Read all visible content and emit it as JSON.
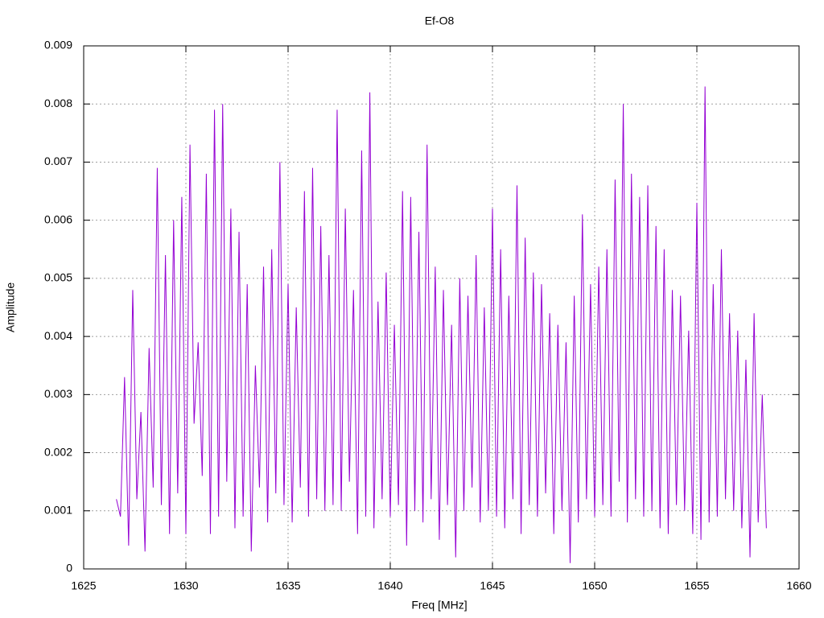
{
  "chart_data": {
    "type": "line",
    "title": "Ef-O8",
    "x_label": "Freq [MHz]",
    "y_label": "Amplitude",
    "color": "#9400d3",
    "grid": true,
    "xlim": [
      1625,
      1660
    ],
    "xticks": [
      1625,
      1630,
      1635,
      1640,
      1645,
      1650,
      1655,
      1660
    ],
    "ylim": [
      0,
      0.009
    ],
    "yticks": [
      0,
      0.001,
      0.002,
      0.003,
      0.004,
      0.005,
      0.006,
      0.007,
      0.008,
      0.009
    ],
    "x": [
      1626.6,
      1626.8,
      1627,
      1627.2,
      1627.4,
      1627.6,
      1627.8,
      1628,
      1628.2,
      1628.4,
      1628.6,
      1628.8,
      1629,
      1629.2,
      1629.4,
      1629.6,
      1629.8,
      1630,
      1630.2,
      1630.4,
      1630.6,
      1630.8,
      1631,
      1631.2,
      1631.4,
      1631.6,
      1631.8,
      1632,
      1632.2,
      1632.4,
      1632.6,
      1632.8,
      1633,
      1633.2,
      1633.4,
      1633.6,
      1633.8,
      1634,
      1634.2,
      1634.4,
      1634.6,
      1634.8,
      1635,
      1635.2,
      1635.4,
      1635.6,
      1635.8,
      1636,
      1636.2,
      1636.4,
      1636.6,
      1636.8,
      1637,
      1637.2,
      1637.4,
      1637.6,
      1637.8,
      1638,
      1638.2,
      1638.4,
      1638.6,
      1638.8,
      1639,
      1639.2,
      1639.4,
      1639.6,
      1639.8,
      1640,
      1640.2,
      1640.4,
      1640.6,
      1640.8,
      1641,
      1641.2,
      1641.4,
      1641.6,
      1641.8,
      1642,
      1642.2,
      1642.4,
      1642.6,
      1642.8,
      1643,
      1643.2,
      1643.4,
      1643.6,
      1643.8,
      1644,
      1644.2,
      1644.4,
      1644.6,
      1644.8,
      1645,
      1645.2,
      1645.4,
      1645.6,
      1645.8,
      1646,
      1646.2,
      1646.4,
      1646.6,
      1646.8,
      1647,
      1647.2,
      1647.4,
      1647.6,
      1647.8,
      1648,
      1648.2,
      1648.4,
      1648.6,
      1648.8,
      1649,
      1649.2,
      1649.4,
      1649.6,
      1649.8,
      1650,
      1650.2,
      1650.4,
      1650.6,
      1650.8,
      1651,
      1651.2,
      1651.4,
      1651.6,
      1651.8,
      1652,
      1652.2,
      1652.4,
      1652.6,
      1652.8,
      1653,
      1653.2,
      1653.4,
      1653.6,
      1653.8,
      1654,
      1654.2,
      1654.4,
      1654.6,
      1654.8,
      1655,
      1655.2,
      1655.4,
      1655.6,
      1655.8,
      1656,
      1656.2,
      1656.4,
      1656.6,
      1656.8,
      1657,
      1657.2,
      1657.4,
      1657.6,
      1657.8,
      1658,
      1658.2,
      1658.4
    ],
    "values": [
      0.0012,
      0.0009,
      0.0033,
      0.0004,
      0.0048,
      0.0012,
      0.0027,
      0.0003,
      0.0038,
      0.0014,
      0.0069,
      0.0011,
      0.0054,
      0.0006,
      0.006,
      0.0013,
      0.0064,
      0.0006,
      0.0073,
      0.0025,
      0.0039,
      0.0016,
      0.0068,
      0.0006,
      0.0079,
      0.0009,
      0.008,
      0.0015,
      0.0062,
      0.0007,
      0.0058,
      0.0009,
      0.0049,
      0.0003,
      0.0035,
      0.0014,
      0.0052,
      0.0008,
      0.0055,
      0.0013,
      0.007,
      0.0011,
      0.0049,
      0.0008,
      0.0045,
      0.0014,
      0.0065,
      0.0009,
      0.0069,
      0.0012,
      0.0059,
      0.001,
      0.0054,
      0.0011,
      0.0079,
      0.001,
      0.0062,
      0.0015,
      0.0048,
      0.0006,
      0.0072,
      0.0009,
      0.0082,
      0.0007,
      0.0046,
      0.0012,
      0.0051,
      0.0009,
      0.0042,
      0.0011,
      0.0065,
      0.0004,
      0.0064,
      0.001,
      0.0058,
      0.0008,
      0.0073,
      0.0012,
      0.0052,
      0.0005,
      0.0048,
      0.0011,
      0.0042,
      0.0002,
      0.005,
      0.001,
      0.0047,
      0.0014,
      0.0054,
      0.0008,
      0.0045,
      0.001,
      0.0062,
      0.0009,
      0.0055,
      0.0007,
      0.0047,
      0.0012,
      0.0066,
      0.0006,
      0.0057,
      0.0011,
      0.0051,
      0.0009,
      0.0049,
      0.0013,
      0.0044,
      0.0006,
      0.0042,
      0.001,
      0.0039,
      0.0001,
      0.0047,
      0.0008,
      0.0061,
      0.0012,
      0.0049,
      0.0009,
      0.0052,
      0.0011,
      0.0055,
      0.0009,
      0.0067,
      0.0015,
      0.008,
      0.0008,
      0.0068,
      0.0012,
      0.0064,
      0.0009,
      0.0066,
      0.001,
      0.0059,
      0.0007,
      0.0055,
      0.0006,
      0.0048,
      0.0011,
      0.0047,
      0.001,
      0.0041,
      0.0006,
      0.0063,
      0.0005,
      0.0083,
      0.0008,
      0.0049,
      0.0009,
      0.0055,
      0.0012,
      0.0044,
      0.001,
      0.0041,
      0.0007,
      0.0036,
      0.0002,
      0.0044,
      0.0008,
      0.003,
      0.0007
    ]
  }
}
